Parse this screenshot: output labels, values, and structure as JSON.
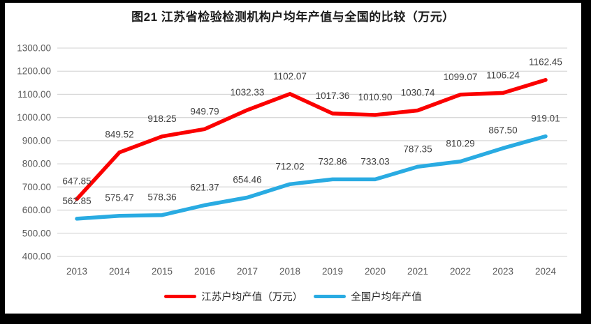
{
  "title": "图21  江苏省检验检测机构户均年产值与全国的比较（万元）",
  "colors": {
    "frame": "#000000",
    "background": "#ffffff",
    "gridline": "#d9d9d9",
    "axis_text": "#595959",
    "data_label_text": "#404040",
    "title_text": "#1a1a1a",
    "series_jiangsu": "#fb0000",
    "series_national": "#29abe2"
  },
  "chart_data": {
    "type": "line",
    "title": "图21  江苏省检验检测机构户均年产值与全国的比较（万元）",
    "categories": [
      "2013",
      "2014",
      "2015",
      "2016",
      "2017",
      "2018",
      "2019",
      "2020",
      "2021",
      "2022",
      "2023",
      "2024"
    ],
    "series": [
      {
        "name": "江苏户均产值（万元）",
        "color": "#fb0000",
        "values": [
          647.85,
          849.52,
          918.25,
          949.79,
          1032.33,
          1102.07,
          1017.36,
          1010.9,
          1030.74,
          1099.07,
          1106.24,
          1162.45
        ]
      },
      {
        "name": "全国户均年产值",
        "color": "#29abe2",
        "values": [
          562.85,
          575.47,
          578.36,
          621.37,
          654.46,
          712.02,
          732.86,
          733.03,
          787.35,
          810.29,
          867.5,
          919.01
        ]
      }
    ],
    "ylim": [
      400,
      1300
    ],
    "ytick_step": 100,
    "ytick_decimals": 2,
    "data_label_decimals": 2,
    "grid": true,
    "data_labels": true,
    "legend_position": "bottom",
    "xlabel": "",
    "ylabel": ""
  }
}
